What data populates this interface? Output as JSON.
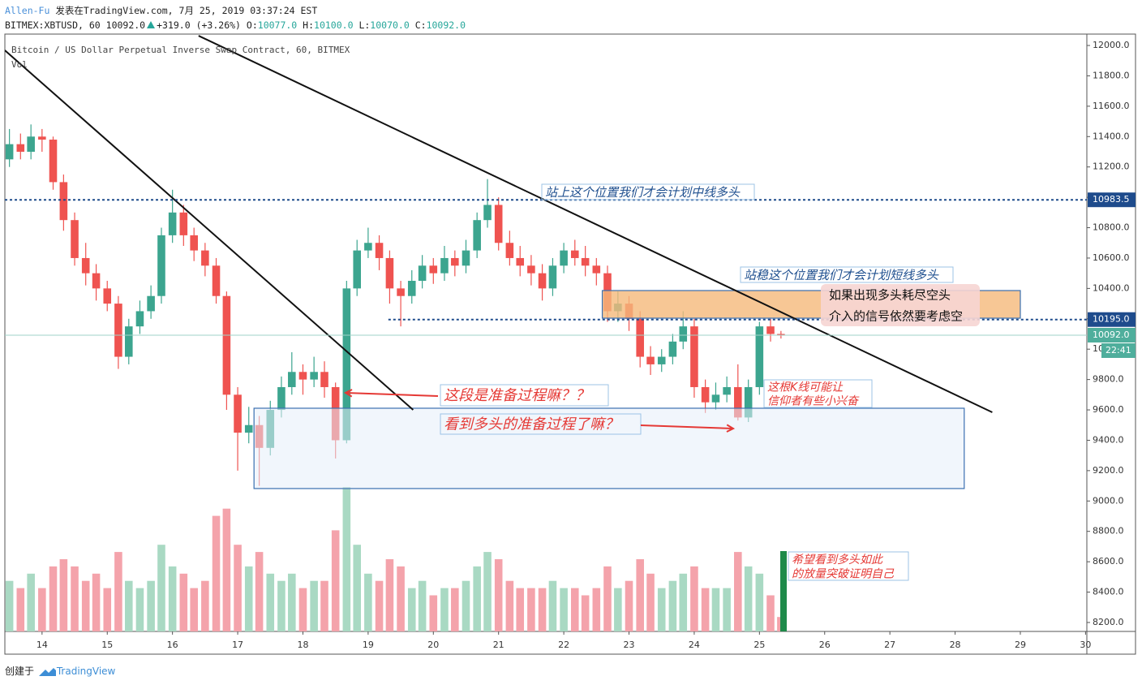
{
  "header": {
    "author": "Allen-Fu",
    "published": "发表在TradingView.com, 7月 25, 2019 03:37:24 EST",
    "symbol": "BITMEX:XBTUSD, 60",
    "last": "10092.0",
    "change": "+319.0 (+3.26%)",
    "ohlc": [
      {
        "label": "O:",
        "value": "10077.0"
      },
      {
        "label": "H:",
        "value": "10100.0"
      },
      {
        "label": "L:",
        "value": "10070.0"
      },
      {
        "label": "C:",
        "value": "10092.0"
      }
    ]
  },
  "chart_data": {
    "type": "candlestick",
    "title": "Bitcoin / US Dollar Perpetual Inverse Swap Contract, 60, BITMEX",
    "volume_label": "Vol",
    "up_color": "#3ca58f",
    "down_color": "#ef5350",
    "volume_up_color": "#a9d9c3",
    "volume_down_color": "#f4a3ab",
    "xlim": [
      13.43,
      30.02
    ],
    "xticks": [
      14,
      15,
      16,
      17,
      18,
      19,
      20,
      21,
      22,
      23,
      24,
      25,
      26,
      27,
      28,
      29,
      30
    ],
    "ylim": [
      8141,
      12075
    ],
    "yticks": [
      {
        "value": 8200,
        "label": "8200.0"
      },
      {
        "value": 8400,
        "label": "8400.0"
      },
      {
        "value": 8600,
        "label": "8600.0"
      },
      {
        "value": 8800,
        "label": "8800.0"
      },
      {
        "value": 9000,
        "label": "9000.0"
      },
      {
        "value": 9200,
        "label": "9200.0"
      },
      {
        "value": 9400,
        "label": "9400.0"
      },
      {
        "value": 9600,
        "label": "9600.0"
      },
      {
        "value": 9800,
        "label": "9800.0"
      },
      {
        "value": 10000,
        "label": "10000.0"
      },
      {
        "value": 10200,
        "label": "10200.0"
      },
      {
        "value": 10400,
        "label": "10400.0"
      },
      {
        "value": 10600,
        "label": "10600.0"
      },
      {
        "value": 10800,
        "label": "10800.0"
      },
      {
        "value": 11000,
        "label": "11000.0"
      },
      {
        "value": 11200,
        "label": "11200.0"
      },
      {
        "value": 11400,
        "label": "11400.0"
      },
      {
        "value": 11600,
        "label": "11600.0"
      },
      {
        "value": 11800,
        "label": "11800.0"
      },
      {
        "value": 12000,
        "label": "12000.0"
      }
    ],
    "volume_ylim": [
      0,
      100
    ],
    "x": [
      13.5,
      13.67,
      13.83,
      14,
      14.17,
      14.33,
      14.5,
      14.67,
      14.83,
      15,
      15.17,
      15.33,
      15.5,
      15.67,
      15.83,
      16,
      16.17,
      16.33,
      16.5,
      16.67,
      16.83,
      17,
      17.17,
      17.33,
      17.5,
      17.67,
      17.83,
      18,
      18.17,
      18.33,
      18.5,
      18.67,
      18.83,
      19,
      19.17,
      19.33,
      19.5,
      19.67,
      19.83,
      20,
      20.17,
      20.33,
      20.5,
      20.67,
      20.83,
      21,
      21.17,
      21.33,
      21.5,
      21.67,
      21.83,
      22,
      22.17,
      22.33,
      22.5,
      22.67,
      22.83,
      23,
      23.17,
      23.33,
      23.5,
      23.67,
      23.83,
      24,
      24.17,
      24.33,
      24.5,
      24.67,
      24.83,
      25,
      25.17,
      25.33
    ],
    "ohlc": [
      [
        11250,
        11450,
        11200,
        11350
      ],
      [
        11350,
        11420,
        11250,
        11300
      ],
      [
        11300,
        11480,
        11250,
        11400
      ],
      [
        11400,
        11450,
        11300,
        11380
      ],
      [
        11380,
        11400,
        11050,
        11100
      ],
      [
        11100,
        11150,
        10780,
        10850
      ],
      [
        10850,
        10900,
        10550,
        10600
      ],
      [
        10600,
        10700,
        10420,
        10500
      ],
      [
        10500,
        10560,
        10320,
        10400
      ],
      [
        10400,
        10450,
        10250,
        10300
      ],
      [
        10300,
        10350,
        9870,
        9950
      ],
      [
        9950,
        10200,
        9900,
        10150
      ],
      [
        10150,
        10320,
        10100,
        10250
      ],
      [
        10250,
        10420,
        10200,
        10350
      ],
      [
        10350,
        10800,
        10300,
        10750
      ],
      [
        10750,
        11050,
        10700,
        10900
      ],
      [
        10900,
        10950,
        10680,
        10750
      ],
      [
        10750,
        10800,
        10580,
        10650
      ],
      [
        10650,
        10700,
        10480,
        10550
      ],
      [
        10550,
        10600,
        10300,
        10350
      ],
      [
        10350,
        10380,
        9600,
        9700
      ],
      [
        9700,
        9750,
        9200,
        9450
      ],
      [
        9450,
        9620,
        9380,
        9500
      ],
      [
        9500,
        9560,
        9100,
        9350
      ],
      [
        9350,
        9660,
        9300,
        9600
      ],
      [
        9600,
        9820,
        9550,
        9750
      ],
      [
        9750,
        9980,
        9700,
        9850
      ],
      [
        9850,
        9900,
        9700,
        9800
      ],
      [
        9800,
        9950,
        9750,
        9850
      ],
      [
        9850,
        9920,
        9680,
        9750
      ],
      [
        9750,
        9780,
        9280,
        9400
      ],
      [
        9400,
        10450,
        9380,
        10400
      ],
      [
        10400,
        10720,
        10350,
        10650
      ],
      [
        10650,
        10800,
        10600,
        10700
      ],
      [
        10700,
        10750,
        10520,
        10600
      ],
      [
        10600,
        10650,
        10300,
        10400
      ],
      [
        10400,
        10450,
        10150,
        10350
      ],
      [
        10350,
        10520,
        10300,
        10450
      ],
      [
        10450,
        10620,
        10400,
        10550
      ],
      [
        10550,
        10600,
        10430,
        10500
      ],
      [
        10500,
        10680,
        10450,
        10600
      ],
      [
        10600,
        10650,
        10480,
        10550
      ],
      [
        10550,
        10720,
        10500,
        10650
      ],
      [
        10650,
        10900,
        10600,
        10850
      ],
      [
        10850,
        11120,
        10800,
        10950
      ],
      [
        10950,
        11000,
        10650,
        10700
      ],
      [
        10700,
        10780,
        10550,
        10600
      ],
      [
        10600,
        10680,
        10480,
        10550
      ],
      [
        10550,
        10620,
        10420,
        10500
      ],
      [
        10500,
        10560,
        10320,
        10400
      ],
      [
        10400,
        10600,
        10350,
        10550
      ],
      [
        10550,
        10700,
        10500,
        10650
      ],
      [
        10650,
        10720,
        10550,
        10600
      ],
      [
        10600,
        10680,
        10480,
        10550
      ],
      [
        10550,
        10600,
        10420,
        10500
      ],
      [
        10500,
        10550,
        10180,
        10250
      ],
      [
        10250,
        10380,
        10180,
        10300
      ],
      [
        10300,
        10350,
        10120,
        10200
      ],
      [
        10200,
        10250,
        9880,
        9950
      ],
      [
        9950,
        10020,
        9830,
        9900
      ],
      [
        9900,
        10000,
        9850,
        9950
      ],
      [
        9950,
        10100,
        9900,
        10050
      ],
      [
        10050,
        10250,
        10000,
        10150
      ],
      [
        10150,
        10200,
        9680,
        9750
      ],
      [
        9750,
        9800,
        9580,
        9650
      ],
      [
        9650,
        9780,
        9600,
        9700
      ],
      [
        9700,
        9820,
        9650,
        9750
      ],
      [
        9750,
        9900,
        9530,
        9550
      ],
      [
        9550,
        9800,
        9520,
        9750
      ],
      [
        9750,
        10180,
        9700,
        10150
      ],
      [
        10150,
        10200,
        10050,
        10100
      ],
      [
        10100,
        10120,
        10070,
        10092
      ]
    ],
    "volume": [
      35,
      30,
      40,
      30,
      45,
      50,
      45,
      35,
      40,
      30,
      55,
      35,
      30,
      35,
      60,
      45,
      40,
      30,
      35,
      80,
      85,
      60,
      45,
      55,
      40,
      35,
      40,
      30,
      35,
      35,
      70,
      100,
      60,
      40,
      35,
      50,
      45,
      30,
      35,
      25,
      30,
      30,
      35,
      45,
      55,
      50,
      35,
      30,
      30,
      30,
      35,
      30,
      30,
      25,
      30,
      45,
      30,
      35,
      50,
      40,
      30,
      35,
      40,
      45,
      30,
      30,
      30,
      55,
      45,
      40,
      25,
      10
    ],
    "price_lines": [
      {
        "value": 10983.5,
        "label": "10983.5",
        "x_from": 13.43
      },
      {
        "value": 10195.0,
        "label": "10195.0",
        "x_from": 19.31
      }
    ],
    "last_price": {
      "value": 10092.0,
      "label": "10092.0"
    },
    "countdown": "22:41",
    "trendlines": [
      {
        "x": [
          13.43,
          19.69
        ],
        "y": [
          11968,
          9600
        ]
      },
      {
        "x": [
          16.4,
          28.57
        ],
        "y": [
          12064,
          9584
        ]
      }
    ],
    "rectangles": [
      {
        "x": [
          22.59,
          29.0
        ],
        "y": [
          10204,
          10386
        ],
        "color": "#f5b97a"
      },
      {
        "x": [
          17.25,
          28.14
        ],
        "y": [
          9082,
          9611
        ],
        "color": "#e6eef9"
      }
    ],
    "annotations": [
      {
        "lines": [
          "站上这个位置我们才会计划中线多头"
        ]
      },
      {
        "lines": [
          "站稳这个位置我们才会计划短线多头"
        ]
      },
      {
        "lines": [
          "如果出现多头耗尽空头",
          "介入的信号依然要考虑空"
        ]
      },
      {
        "lines": [
          "这段是准备过程嘛？？"
        ]
      },
      {
        "lines": [
          "看到多头的准备过程了嘛？"
        ]
      },
      {
        "lines": [
          "这根K线可能让",
          "信仰者有些小兴奋"
        ]
      },
      {
        "lines": [
          "希望看到多头如此",
          "的放量突破证明自己"
        ]
      }
    ]
  },
  "footer": {
    "created": "创建于",
    "brand": "TradingView"
  }
}
